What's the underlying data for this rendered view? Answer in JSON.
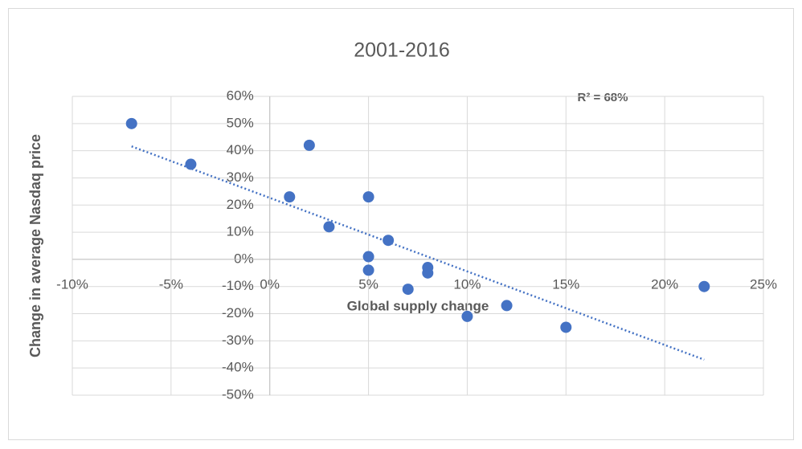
{
  "chart_data": {
    "type": "scatter",
    "title": "2001-2016",
    "x_label": "Global supply change",
    "y_label": "Change in average Nasdaq price",
    "annotation": "R² = 68%",
    "trendline": true,
    "trendline_color": "#4472c4",
    "color": "#4472c4",
    "grid": true,
    "x": [
      -7,
      -4,
      2,
      1,
      5,
      3,
      6,
      5,
      5,
      8,
      8,
      7,
      10,
      12,
      15,
      22
    ],
    "values": [
      50,
      35,
      42,
      23,
      23,
      12,
      7,
      1,
      -4,
      -3,
      -5,
      -11,
      -21,
      -17,
      -25,
      -10
    ],
    "xlim": [
      -10,
      25
    ],
    "xticks": [
      {
        "value": -10,
        "label": "-10%"
      },
      {
        "value": -5,
        "label": "-5%"
      },
      {
        "value": 0,
        "label": "0%"
      },
      {
        "value": 5,
        "label": "5%"
      },
      {
        "value": 10,
        "label": "10%"
      },
      {
        "value": 15,
        "label": "15%"
      },
      {
        "value": 20,
        "label": "20%"
      },
      {
        "value": 25,
        "label": "25%"
      }
    ],
    "ylim": [
      -50,
      60
    ],
    "yticks": [
      {
        "value": 60,
        "label": "60%"
      },
      {
        "value": 50,
        "label": "50%"
      },
      {
        "value": 40,
        "label": "40%"
      },
      {
        "value": 30,
        "label": "30%"
      },
      {
        "value": 20,
        "label": "20%"
      },
      {
        "value": 10,
        "label": "10%"
      },
      {
        "value": 0,
        "label": "0%"
      },
      {
        "value": -10,
        "label": "-10%"
      },
      {
        "value": -20,
        "label": "-20%"
      },
      {
        "value": -30,
        "label": "-30%"
      },
      {
        "value": -40,
        "label": "-40%"
      },
      {
        "value": -50,
        "label": "-50%"
      }
    ]
  }
}
